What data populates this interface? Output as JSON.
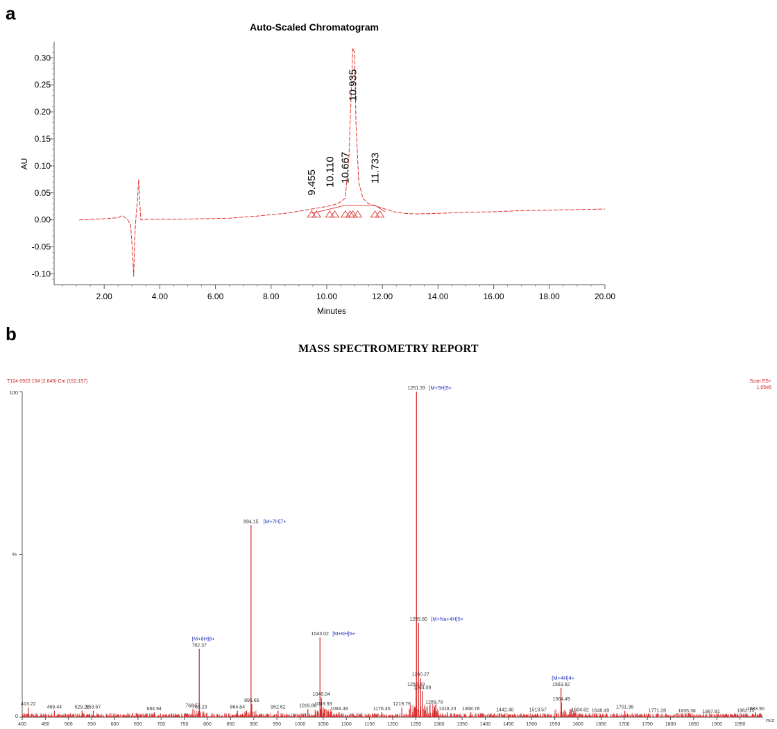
{
  "panel_a_label": "a",
  "panel_b_label": "b",
  "chart_data": [
    {
      "type": "line",
      "title": "Auto-Scaled Chromatogram",
      "xlabel": "Minutes",
      "ylabel": "AU",
      "xlim": [
        0.2,
        20.0
      ],
      "ylim": [
        -0.12,
        0.33
      ],
      "x_ticks": [
        "2.00",
        "4.00",
        "6.00",
        "8.00",
        "10.00",
        "12.00",
        "14.00",
        "16.00",
        "18.00",
        "20.00"
      ],
      "x_tick_values": [
        2,
        4,
        6,
        8,
        10,
        12,
        14,
        16,
        18,
        20
      ],
      "y_ticks": [
        "0.30",
        "0.25",
        "0.20",
        "0.15",
        "0.10",
        "0.05",
        "0.00",
        "-0.05",
        "-0.10"
      ],
      "y_tick_values": [
        0.3,
        0.25,
        0.2,
        0.15,
        0.1,
        0.05,
        0.0,
        -0.05,
        -0.1
      ],
      "color": "#e0302a",
      "trace": [
        [
          1.1,
          0.0
        ],
        [
          2.0,
          0.002
        ],
        [
          2.5,
          0.004
        ],
        [
          2.65,
          0.008
        ],
        [
          2.75,
          0.004
        ],
        [
          2.85,
          0.0
        ],
        [
          2.95,
          -0.01
        ],
        [
          3.02,
          -0.06
        ],
        [
          3.06,
          -0.105
        ],
        [
          3.1,
          -0.03
        ],
        [
          3.15,
          0.01
        ],
        [
          3.2,
          0.04
        ],
        [
          3.24,
          0.075
        ],
        [
          3.28,
          0.03
        ],
        [
          3.32,
          0.0
        ],
        [
          3.6,
          0.001
        ],
        [
          4.5,
          0.001
        ],
        [
          5.5,
          0.002
        ],
        [
          6.5,
          0.003
        ],
        [
          7.5,
          0.007
        ],
        [
          8.5,
          0.012
        ],
        [
          9.0,
          0.016
        ],
        [
          9.455,
          0.02
        ],
        [
          9.8,
          0.023
        ],
        [
          10.11,
          0.026
        ],
        [
          10.4,
          0.03
        ],
        [
          10.667,
          0.04
        ],
        [
          10.8,
          0.12
        ],
        [
          10.935,
          0.318
        ],
        [
          11.0,
          0.31
        ],
        [
          11.05,
          0.18
        ],
        [
          11.15,
          0.07
        ],
        [
          11.3,
          0.04
        ],
        [
          11.5,
          0.03
        ],
        [
          11.733,
          0.026
        ],
        [
          12.1,
          0.02
        ],
        [
          12.4,
          0.015
        ],
        [
          12.8,
          0.012
        ],
        [
          13.2,
          0.011
        ],
        [
          14.0,
          0.012
        ],
        [
          15.0,
          0.014
        ],
        [
          16.0,
          0.015
        ],
        [
          17.0,
          0.017
        ],
        [
          18.0,
          0.018
        ],
        [
          19.0,
          0.019
        ],
        [
          20.0,
          0.02
        ]
      ],
      "peaks": [
        {
          "label": "9.455",
          "rt": 9.455
        },
        {
          "label": "10.110",
          "rt": 10.11
        },
        {
          "label": "10.667",
          "rt": 10.667
        },
        {
          "label": "10.935",
          "rt": 10.935
        },
        {
          "label": "11.733",
          "rt": 11.733
        }
      ]
    },
    {
      "type": "bar",
      "title": "MASS SPECTROMETRY REPORT",
      "header_left": "T124-0922 154 (2.849) Cm (152:157)",
      "header_right_1": "Scan ES+",
      "header_right_2": "1.05e6",
      "y_top_label": "100",
      "y_mid_label": "%",
      "y_bottom_label": "0",
      "xlabel": "m/z",
      "xlim": [
        400,
        2000
      ],
      "ylim": [
        0,
        100
      ],
      "x_ticks": [
        "400",
        "450",
        "500",
        "550",
        "600",
        "650",
        "700",
        "750",
        "800",
        "850",
        "900",
        "950",
        "1000",
        "1050",
        "1100",
        "1150",
        "1200",
        "1250",
        "1300",
        "1350",
        "1400",
        "1450",
        "1500",
        "1550",
        "1600",
        "1650",
        "1700",
        "1750",
        "1800",
        "1850",
        "1900",
        "1950"
      ],
      "x_tick_values": [
        400,
        450,
        500,
        550,
        600,
        650,
        700,
        750,
        800,
        850,
        900,
        950,
        1000,
        1050,
        1100,
        1150,
        1200,
        1250,
        1300,
        1350,
        1400,
        1450,
        1500,
        1550,
        1600,
        1650,
        1700,
        1750,
        1800,
        1850,
        1900,
        1950
      ],
      "color": "#d42020",
      "peaks": [
        {
          "mz": 413.22,
          "label": "413.22",
          "intensity": 3
        },
        {
          "mz": 469.44,
          "label": "469.44",
          "intensity": 2
        },
        {
          "mz": 529.22,
          "label": "529.22",
          "intensity": 2
        },
        {
          "mz": 553.57,
          "label": "553.57",
          "intensity": 2
        },
        {
          "mz": 684.94,
          "label": "684.94",
          "intensity": 1.5
        },
        {
          "mz": 768.57,
          "label": "768.57",
          "intensity": 2.5
        },
        {
          "mz": 782.37,
          "label": "782.37",
          "intensity": 21,
          "ion": "[M+8H]8+"
        },
        {
          "mz": 783.23,
          "label": "783.23",
          "intensity": 2
        },
        {
          "mz": 864.84,
          "label": "864.84",
          "intensity": 2
        },
        {
          "mz": 894.15,
          "label": "894.15",
          "intensity": 59,
          "ion": "[M+7H]7+"
        },
        {
          "mz": 895.66,
          "label": "895.66",
          "intensity": 4
        },
        {
          "mz": 952.62,
          "label": "952.62",
          "intensity": 2
        },
        {
          "mz": 1016.88,
          "label": "1016.88",
          "intensity": 2.5
        },
        {
          "mz": 1043.02,
          "label": "1043.02",
          "intensity": 24.5,
          "ion": "[M+6H]6+"
        },
        {
          "mz": 1046.04,
          "label": "1046.04",
          "intensity": 6
        },
        {
          "mz": 1049.93,
          "label": "1049.93",
          "intensity": 3
        },
        {
          "mz": 1084.49,
          "label": "1084.49",
          "intensity": 1.5
        },
        {
          "mz": 1176.45,
          "label": "1176.45",
          "intensity": 1.5
        },
        {
          "mz": 1219.79,
          "label": "1219.79",
          "intensity": 3
        },
        {
          "mz": 1250.69,
          "label": "1250.69",
          "intensity": 9
        },
        {
          "mz": 1251.33,
          "label": "1251.33",
          "intensity": 100,
          "ion": "[M+5H]5+"
        },
        {
          "mz": 1255.8,
          "label": "1255.80",
          "intensity": 29,
          "ion": "[M+Na+4H]5+"
        },
        {
          "mz": 1260.27,
          "label": "1260.27",
          "intensity": 12
        },
        {
          "mz": 1264.09,
          "label": "1264.09",
          "intensity": 8
        },
        {
          "mz": 1289.79,
          "label": "1289.79",
          "intensity": 3.5
        },
        {
          "mz": 1318.23,
          "label": "1318.23",
          "intensity": 1.5
        },
        {
          "mz": 1368.78,
          "label": "1368.78",
          "intensity": 1.5
        },
        {
          "mz": 1442.4,
          "label": "1442.40",
          "intensity": 1.2
        },
        {
          "mz": 1513.57,
          "label": "1513.57",
          "intensity": 1.2
        },
        {
          "mz": 1563.62,
          "label": "1563.62",
          "intensity": 9,
          "ion": "[M+4H]4+"
        },
        {
          "mz": 1564.49,
          "label": "1564.49",
          "intensity": 4.5
        },
        {
          "mz": 1604.62,
          "label": "1604.62",
          "intensity": 1.2
        },
        {
          "mz": 1648.49,
          "label": "1648.49",
          "intensity": 1
        },
        {
          "mz": 1701.36,
          "label": "1701.36",
          "intensity": 2
        },
        {
          "mz": 1771.28,
          "label": "1771.28",
          "intensity": 1
        },
        {
          "mz": 1835.38,
          "label": "1835.38",
          "intensity": 0.8
        },
        {
          "mz": 1887.81,
          "label": "1887.81",
          "intensity": 0.6
        },
        {
          "mz": 1962.15,
          "label": "1962.15",
          "intensity": 1
        },
        {
          "mz": 1983.9,
          "label": "1983.90",
          "intensity": 1.5
        }
      ]
    }
  ]
}
